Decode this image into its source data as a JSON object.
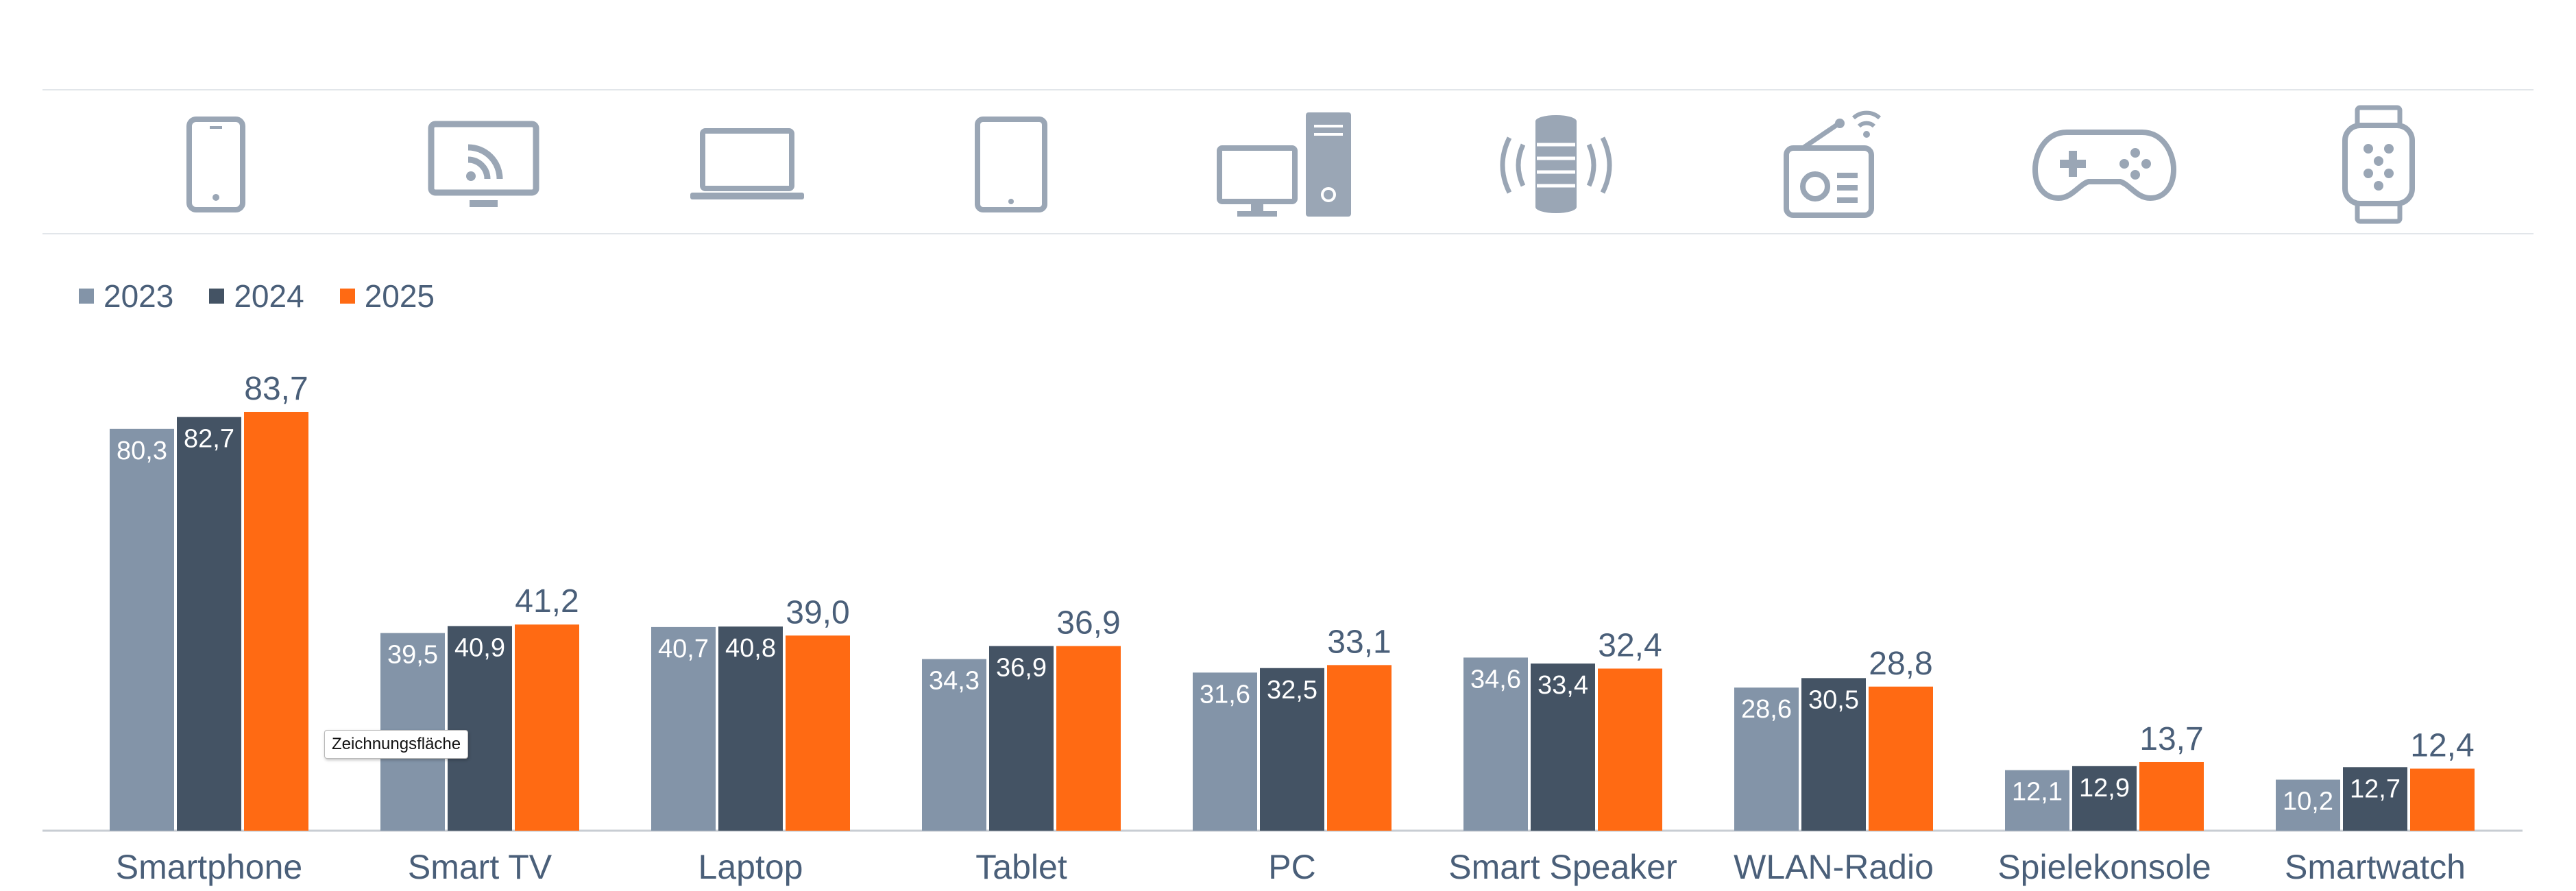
{
  "legend": [
    {
      "label": "2023",
      "color": "#8394a8"
    },
    {
      "label": "2024",
      "color": "#445364"
    },
    {
      "label": "2025",
      "color": "#ff6a13"
    }
  ],
  "icons": [
    "smartphone-icon",
    "smart-tv-cast-icon",
    "laptop-icon",
    "tablet-icon",
    "desktop-pc-icon",
    "smart-speaker-icon",
    "wifi-radio-icon",
    "gamepad-icon",
    "smartwatch-icon"
  ],
  "tooltip": "Zeichnungsfläche",
  "chart_data": {
    "type": "bar",
    "categories": [
      "Smartphone",
      "Smart TV",
      "Laptop",
      "Tablet",
      "PC",
      "Smart Speaker",
      "WLAN-Radio",
      "Spielekonsole",
      "Smartwatch"
    ],
    "series": [
      {
        "name": "2023",
        "color": "#8394a8",
        "values": [
          80.3,
          39.5,
          40.7,
          34.3,
          31.6,
          34.6,
          28.6,
          12.1,
          10.2
        ],
        "labels": [
          "80,3",
          "39,5",
          "40,7",
          "34,3",
          "31,6",
          "34,6",
          "28,6",
          "12,1",
          "10,2"
        ]
      },
      {
        "name": "2024",
        "color": "#445364",
        "values": [
          82.7,
          40.9,
          40.8,
          36.9,
          32.5,
          33.4,
          30.5,
          12.9,
          12.7
        ],
        "labels": [
          "82,7",
          "40,9",
          "40,8",
          "36,9",
          "32,5",
          "33,4",
          "30,5",
          "12,9",
          "12,7"
        ]
      },
      {
        "name": "2025",
        "color": "#ff6a13",
        "values": [
          83.7,
          41.2,
          39.0,
          36.9,
          33.1,
          32.4,
          28.8,
          13.7,
          12.4
        ],
        "labels": [
          "83,7",
          "41,2",
          "39,0",
          "36,9",
          "33,1",
          "32,4",
          "28,8",
          "13,7",
          "12,4"
        ]
      }
    ],
    "ylim": [
      0,
      83.7
    ],
    "grid": false,
    "legend_position": "top-left",
    "colors": {
      "label_outside": "#4a5f79",
      "label_inside": "#ffffff",
      "axis": "#c8cdd3"
    }
  }
}
